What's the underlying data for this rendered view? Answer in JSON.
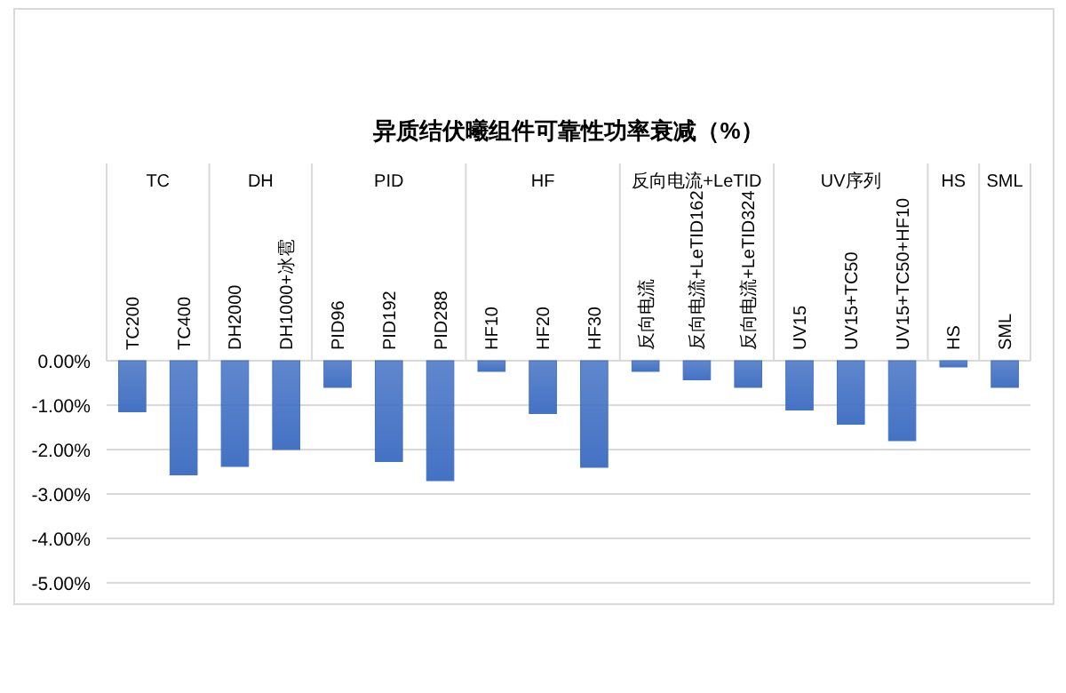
{
  "chart_data": {
    "type": "bar",
    "title": "异质结伏曦组件可靠性功率衰减（%）",
    "categories": [
      "TC200",
      "TC400",
      "DH2000",
      "DH1000+冰雹",
      "PID96",
      "PID192",
      "PID288",
      "HF10",
      "HF20",
      "HF30",
      "反向电流",
      "反向电流+LeTID162",
      "反向电流+LeTID324",
      "UV15",
      "UV15+TC50",
      "UV15+TC50+HF10",
      "HS",
      "SML"
    ],
    "values": [
      -1.15,
      -2.57,
      -2.38,
      -2.0,
      -0.6,
      -2.27,
      -2.7,
      -0.24,
      -1.19,
      -2.4,
      -0.24,
      -0.43,
      -0.6,
      -1.11,
      -1.43,
      -1.8,
      -0.14,
      -0.6
    ],
    "color": "#4472c4",
    "ylim": [
      -5,
      0
    ],
    "yticks": [
      {
        "value": 0,
        "label": "0.00%"
      },
      {
        "value": -1,
        "label": "-1.00%"
      },
      {
        "value": -2,
        "label": "-2.00%"
      },
      {
        "value": -3,
        "label": "-3.00%"
      },
      {
        "value": -4,
        "label": "-4.00%"
      },
      {
        "value": -5,
        "label": "-5.00%"
      }
    ],
    "grid": "y",
    "annotations": [
      "TC",
      "DH",
      "PID",
      "HF",
      "反向电流+LeTID",
      "UV序列",
      "HS",
      "SML"
    ]
  }
}
